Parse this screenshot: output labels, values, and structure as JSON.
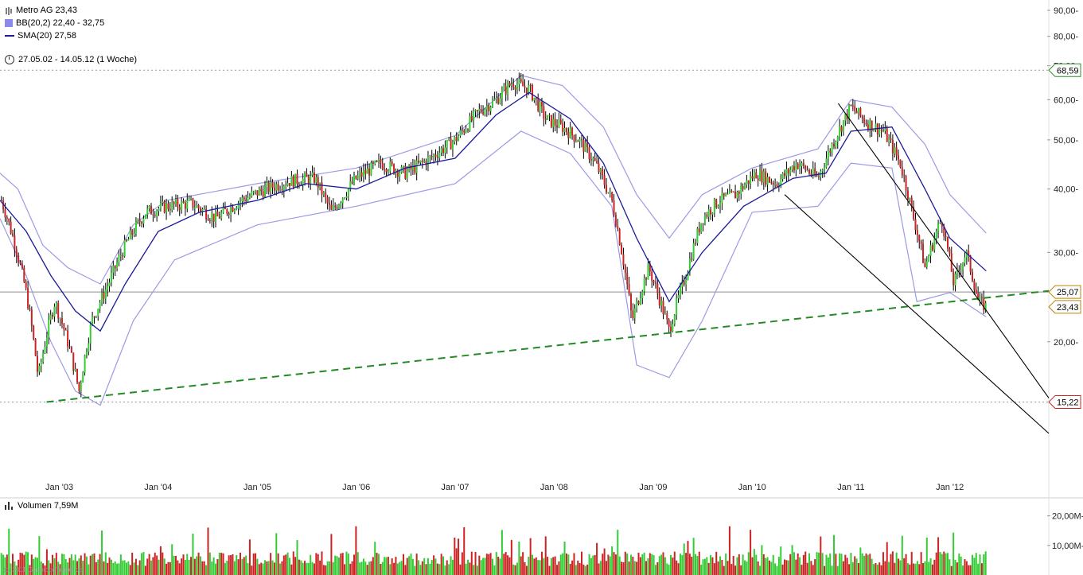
{
  "legend": {
    "instrument": "Metro AG 23,43",
    "bb": "BB(20,2) 22,40 - 32,75",
    "sma": "SMA(20) 27,58"
  },
  "range": "27.05.02 - 14.05.12 (1 Woche)",
  "volume_label": "Volumen 7,59M",
  "watermark": "(c) 2011 GodmodeTrader.de",
  "colors": {
    "up": "#33cc33",
    "down": "#cc2222",
    "bollinger": "#9a9ae6",
    "sma": "#1a1a9a",
    "support": "#228b22",
    "trend": "#000000"
  },
  "chart_data": [
    {
      "type": "candlestick",
      "title": "Metro AG 23,43",
      "x": [
        "Jan '03",
        "Jan '04",
        "Jan '05",
        "Jan '06",
        "Jan '07",
        "Jan '08",
        "Jan '09",
        "Jan '10",
        "Jan '11",
        "Jan '12"
      ],
      "y_ticks": [
        "90,00-",
        "80,00-",
        "70,00-",
        "60,00-",
        "50,00-",
        "40,00-",
        "30,00-",
        "20,00-"
      ],
      "y_scale": "log",
      "ylim": [
        12.5,
        90
      ],
      "series": [
        {
          "name": "Metro AG 23,43",
          "points": [
            [
              "2002-06-01",
              38
            ],
            [
              "2002-07-15",
              32
            ],
            [
              "2002-09-01",
              25
            ],
            [
              "2002-10-15",
              17
            ],
            [
              "2002-12-15",
              24
            ],
            [
              "2003-02-01",
              20
            ],
            [
              "2003-03-15",
              16
            ],
            [
              "2003-05-01",
              22
            ],
            [
              "2003-07-01",
              26
            ],
            [
              "2003-09-01",
              31
            ],
            [
              "2003-11-15",
              36
            ],
            [
              "2004-02-01",
              37
            ],
            [
              "2004-05-01",
              37.5
            ],
            [
              "2004-08-01",
              35
            ],
            [
              "2004-11-01",
              38
            ],
            [
              "2005-02-01",
              40
            ],
            [
              "2005-05-01",
              41.5
            ],
            [
              "2005-08-01",
              42
            ],
            [
              "2005-10-01",
              36
            ],
            [
              "2006-01-01",
              42
            ],
            [
              "2006-04-01",
              45
            ],
            [
              "2006-07-01",
              43
            ],
            [
              "2006-10-01",
              46
            ],
            [
              "2007-01-01",
              50
            ],
            [
              "2007-04-01",
              57
            ],
            [
              "2007-06-01",
              60
            ],
            [
              "2007-08-01",
              65
            ],
            [
              "2007-10-01",
              63
            ],
            [
              "2007-12-01",
              55
            ],
            [
              "2008-02-01",
              53
            ],
            [
              "2008-04-01",
              50
            ],
            [
              "2008-06-01",
              45
            ],
            [
              "2008-08-01",
              38
            ],
            [
              "2008-10-15",
              22
            ],
            [
              "2008-12-15",
              28
            ],
            [
              "2009-03-01",
              21
            ],
            [
              "2009-05-01",
              27
            ],
            [
              "2009-07-01",
              35
            ],
            [
              "2009-09-01",
              38
            ],
            [
              "2009-11-01",
              39
            ],
            [
              "2010-01-15",
              43
            ],
            [
              "2010-04-01",
              41
            ],
            [
              "2010-06-15",
              45
            ],
            [
              "2010-09-01",
              42
            ],
            [
              "2010-11-01",
              50
            ],
            [
              "2011-01-01",
              58
            ],
            [
              "2011-03-01",
              54
            ],
            [
              "2011-05-01",
              52
            ],
            [
              "2011-07-01",
              45
            ],
            [
              "2011-08-15",
              36
            ],
            [
              "2011-10-01",
              28
            ],
            [
              "2011-12-01",
              35
            ],
            [
              "2012-01-15",
              26
            ],
            [
              "2012-03-01",
              30
            ],
            [
              "2012-04-15",
              24
            ],
            [
              "2012-05-14",
              23.43
            ]
          ]
        },
        {
          "name": "SMA(20) 27,58",
          "points": [
            [
              "2002-05-27",
              38
            ],
            [
              "2002-09-01",
              33
            ],
            [
              "2002-12-01",
              27
            ],
            [
              "2003-03-01",
              23
            ],
            [
              "2003-06-01",
              21
            ],
            [
              "2003-09-01",
              26
            ],
            [
              "2004-01-01",
              33
            ],
            [
              "2004-06-01",
              36
            ],
            [
              "2005-01-01",
              38
            ],
            [
              "2005-07-01",
              41
            ],
            [
              "2006-01-01",
              40
            ],
            [
              "2006-07-01",
              44
            ],
            [
              "2007-01-01",
              46
            ],
            [
              "2007-06-01",
              56
            ],
            [
              "2007-10-01",
              62
            ],
            [
              "2008-03-01",
              55
            ],
            [
              "2008-07-01",
              45
            ],
            [
              "2008-11-01",
              32
            ],
            [
              "2009-03-01",
              24
            ],
            [
              "2009-07-01",
              30
            ],
            [
              "2009-12-01",
              37
            ],
            [
              "2010-06-01",
              42
            ],
            [
              "2010-10-01",
              43
            ],
            [
              "2011-01-01",
              52
            ],
            [
              "2011-06-01",
              53
            ],
            [
              "2011-10-01",
              40
            ],
            [
              "2012-01-01",
              32
            ],
            [
              "2012-05-14",
              27.58
            ]
          ]
        },
        {
          "name": "BB(20,2) upper",
          "points": [
            [
              "2002-05-27",
              43
            ],
            [
              "2002-08-01",
              40
            ],
            [
              "2002-11-01",
              31
            ],
            [
              "2003-02-01",
              28
            ],
            [
              "2003-06-01",
              26
            ],
            [
              "2003-10-01",
              34
            ],
            [
              "2004-02-01",
              38
            ],
            [
              "2005-01-01",
              41
            ],
            [
              "2006-01-01",
              44
            ],
            [
              "2007-01-01",
              51
            ],
            [
              "2007-09-01",
              67
            ],
            [
              "2008-02-01",
              64
            ],
            [
              "2008-07-01",
              53
            ],
            [
              "2008-11-01",
              39
            ],
            [
              "2009-03-01",
              32
            ],
            [
              "2009-07-01",
              39
            ],
            [
              "2010-01-01",
              44
            ],
            [
              "2010-09-01",
              48
            ],
            [
              "2011-01-01",
              60
            ],
            [
              "2011-06-01",
              58
            ],
            [
              "2011-10-01",
              49
            ],
            [
              "2012-01-01",
              39
            ],
            [
              "2012-05-14",
              32.75
            ]
          ]
        },
        {
          "name": "BB(20,2) lower",
          "points": [
            [
              "2002-05-27",
              35
            ],
            [
              "2002-09-01",
              27
            ],
            [
              "2002-12-01",
              20
            ],
            [
              "2003-03-01",
              16
            ],
            [
              "2003-06-01",
              15
            ],
            [
              "2003-10-01",
              22
            ],
            [
              "2004-03-01",
              29
            ],
            [
              "2005-01-01",
              34
            ],
            [
              "2006-01-01",
              37
            ],
            [
              "2007-01-01",
              41
            ],
            [
              "2007-09-01",
              52
            ],
            [
              "2008-03-01",
              47
            ],
            [
              "2008-08-01",
              37
            ],
            [
              "2008-11-01",
              18
            ],
            [
              "2009-03-01",
              17
            ],
            [
              "2009-07-01",
              22
            ],
            [
              "2010-01-01",
              36
            ],
            [
              "2010-09-01",
              37
            ],
            [
              "2011-01-01",
              45
            ],
            [
              "2011-06-01",
              44
            ],
            [
              "2011-09-01",
              24
            ],
            [
              "2012-01-01",
              25
            ],
            [
              "2012-05-14",
              22.4
            ]
          ]
        }
      ],
      "price_labels": [
        {
          "value": 68.59,
          "label": "68,59",
          "color": "#2e8b2e"
        },
        {
          "value": 25.07,
          "label": "25,07",
          "color": "#b8860b"
        },
        {
          "value": 23.43,
          "label": "23,43",
          "color": "#b8860b"
        },
        {
          "value": 15.22,
          "label": "15,22",
          "color": "#cc2222"
        }
      ],
      "lines": [
        {
          "name": "support",
          "style": "dashed",
          "from": [
            "2002-11-15",
            15.22
          ],
          "to": [
            "2012-12-31",
            25.2
          ]
        },
        {
          "name": "channel-upper",
          "style": "solid",
          "from": [
            "2010-11-15",
            59
          ],
          "to": [
            "2012-12-31",
            15.5
          ]
        },
        {
          "name": "channel-lower",
          "style": "solid",
          "from": [
            "2010-05-01",
            39
          ],
          "to": [
            "2012-12-31",
            13.2
          ]
        }
      ]
    },
    {
      "type": "bar",
      "title": "Volumen 7,59M",
      "y_ticks": [
        "20,00M-",
        "10,00M-"
      ],
      "ylim": [
        0,
        25
      ],
      "unit": "M"
    }
  ]
}
